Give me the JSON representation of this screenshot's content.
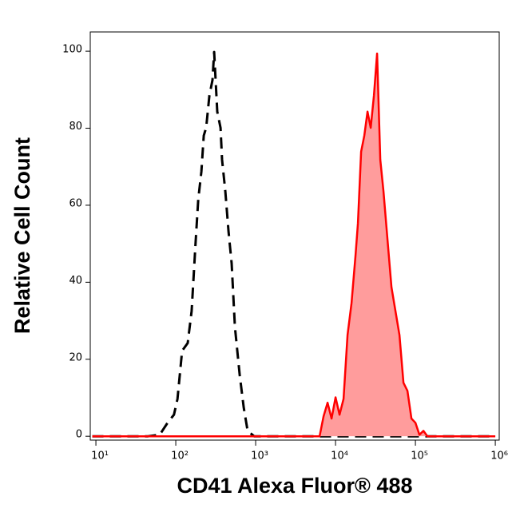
{
  "chart_data": {
    "type": "line",
    "x_label": "CD41 Alexa Fluor® 488",
    "y_label": "Relative Cell Count",
    "xscale": "log",
    "xlim": [
      8.5,
      1120000
    ],
    "xticks": [
      {
        "value": 10,
        "label": "10¹"
      },
      {
        "value": 100,
        "label": "10²"
      },
      {
        "value": 1000,
        "label": "10³"
      },
      {
        "value": 10000,
        "label": "10⁴"
      },
      {
        "value": 100000,
        "label": "10⁵"
      },
      {
        "value": 1000000,
        "label": "10⁶"
      }
    ],
    "ylim": [
      -1,
      105
    ],
    "yticks": [
      0,
      20,
      40,
      60,
      80,
      100
    ],
    "series": [
      {
        "color": "#000000",
        "dash": true,
        "x": [
          9,
          25,
          45,
          63,
          79,
          95,
          105,
          120,
          141,
          158,
          178,
          191,
          209,
          224,
          240,
          263,
          288,
          302,
          331,
          363,
          380,
          417,
          457,
          501,
          550,
          631,
          708,
          794,
          955,
          1000000
        ],
        "values": [
          0,
          0,
          0,
          0.4,
          3.5,
          5.6,
          9.7,
          22.2,
          24.2,
          32.5,
          51.1,
          61.5,
          68.7,
          78.1,
          80.1,
          88.4,
          92.5,
          99.8,
          84.3,
          80.1,
          71.8,
          63.6,
          53.2,
          44.9,
          28.4,
          15.9,
          7.5,
          1.4,
          0,
          0
        ]
      },
      {
        "color": "#ff0000",
        "fill": "#ff9c9c",
        "dash": false,
        "x": [
          9,
          6310,
          7079,
          7943,
          8913,
          10000,
          11220,
          12589,
          14125,
          15849,
          17783,
          19055,
          20893,
          22909,
          25119,
          27542,
          30200,
          33113,
          36308,
          39811,
          44668,
          50119,
          56234,
          63096,
          70795,
          79433,
          89125,
          100000,
          112202,
          125893,
          141254,
          1000000
        ],
        "values": [
          0,
          0,
          5.2,
          8.7,
          4.6,
          10.1,
          5.6,
          9.7,
          26.3,
          34.6,
          47.0,
          55.3,
          73.9,
          78.1,
          84.3,
          80.1,
          88.4,
          99.4,
          71.8,
          63.6,
          51.1,
          38.7,
          32.5,
          26.3,
          13.9,
          11.8,
          4.6,
          3.5,
          0.4,
          1.4,
          0,
          0
        ]
      }
    ]
  }
}
